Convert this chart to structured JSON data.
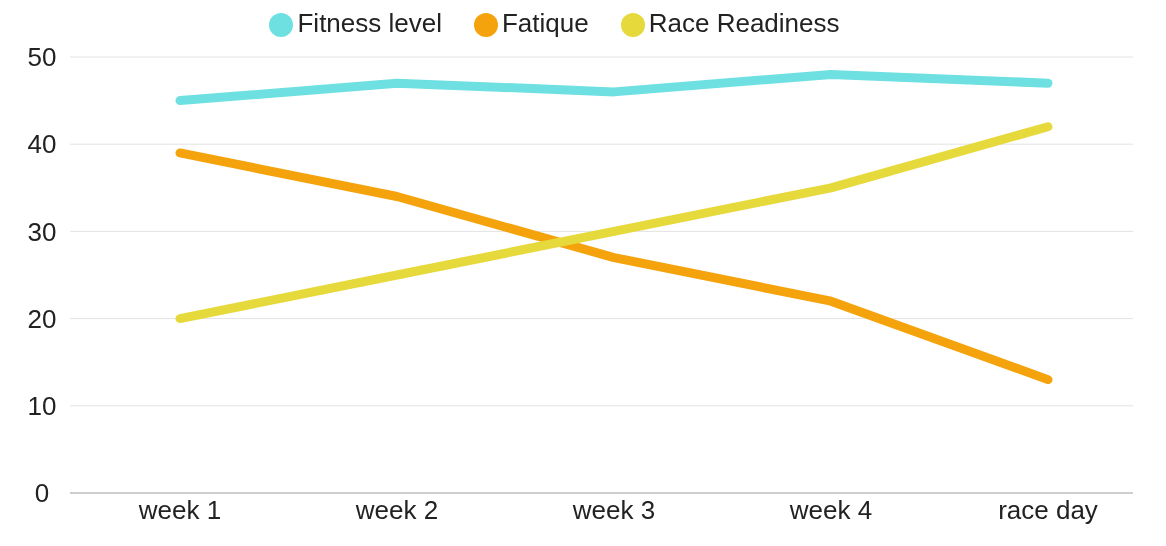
{
  "chart_data": {
    "type": "line",
    "categories": [
      "week 1",
      "week 2",
      "week 3",
      "week 4",
      "race day"
    ],
    "series": [
      {
        "name": "Fitness level",
        "color": "#6ee0e2",
        "values": [
          45,
          47,
          46,
          48,
          47
        ]
      },
      {
        "name": "Fatique",
        "color": "#f5a30c",
        "values": [
          39,
          34,
          27,
          22,
          13
        ]
      },
      {
        "name": "Race Readiness",
        "color": "#e6d93c",
        "values": [
          20,
          25,
          30,
          35,
          42
        ]
      }
    ],
    "ylim": [
      0,
      50
    ],
    "yticks": [
      0,
      10,
      20,
      30,
      40,
      50
    ],
    "grid": "y",
    "legend": "top",
    "marker": "none",
    "line_style": "solid"
  }
}
